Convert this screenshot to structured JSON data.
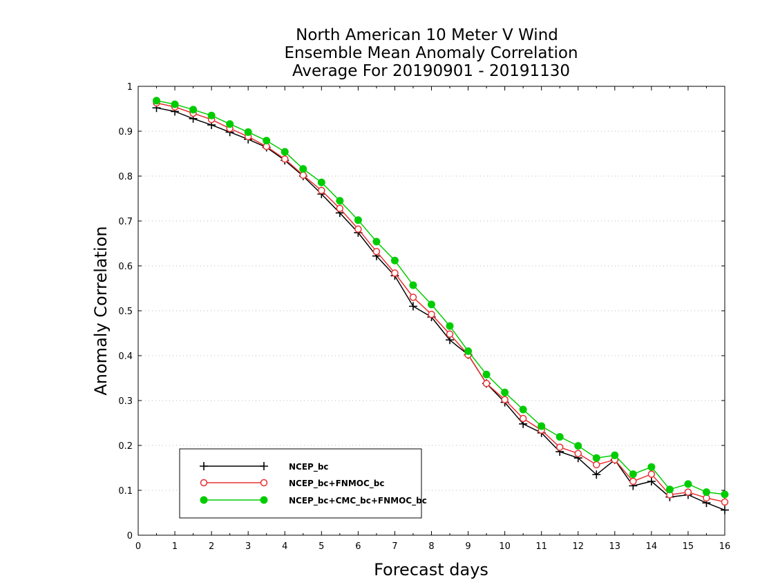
{
  "chart_data": {
    "type": "line",
    "title": [
      "North American 10 Meter V Wind",
      "Ensemble Mean Anomaly Correlation",
      "Average For 20190901 - 20191130"
    ],
    "xlabel": "Forecast days",
    "ylabel": "Anomaly Correlation",
    "xlim": [
      0,
      16
    ],
    "ylim": [
      0,
      1
    ],
    "xticks": [
      "0",
      "1",
      "2",
      "3",
      "4",
      "5",
      "6",
      "7",
      "8",
      "9",
      "10",
      "11",
      "12",
      "13",
      "14",
      "15",
      "16"
    ],
    "yticks": [
      "0",
      "0.1",
      "0.2",
      "0.3",
      "0.4",
      "0.5",
      "0.6",
      "0.7",
      "0.8",
      "0.9",
      "1"
    ],
    "grid": "horizontal dotted",
    "legend_position": "bottom-left",
    "x": [
      0.5,
      1,
      1.5,
      2,
      2.5,
      3,
      3.5,
      4,
      4.5,
      5,
      5.5,
      6,
      6.5,
      7,
      7.5,
      8,
      8.5,
      9,
      9.5,
      10,
      10.5,
      11,
      11.5,
      12,
      12.5,
      13,
      13.5,
      14,
      14.5,
      15,
      15.5,
      16
    ],
    "series": [
      {
        "name": "NCEP_bc",
        "color": "#000000",
        "marker": "plus",
        "values": [
          0.952,
          0.944,
          0.928,
          0.914,
          0.898,
          0.882,
          0.864,
          0.835,
          0.8,
          0.76,
          0.718,
          0.674,
          0.622,
          0.578,
          0.51,
          0.486,
          0.435,
          0.402,
          0.338,
          0.296,
          0.248,
          0.228,
          0.186,
          0.172,
          0.135,
          0.168,
          0.11,
          0.12,
          0.085,
          0.09,
          0.072,
          0.056
        ]
      },
      {
        "name": "NCEP_bc+FNMOC_bc",
        "color": "#e83030",
        "marker": "open-circle",
        "values": [
          0.963,
          0.954,
          0.94,
          0.926,
          0.906,
          0.888,
          0.866,
          0.838,
          0.802,
          0.768,
          0.728,
          0.682,
          0.632,
          0.584,
          0.53,
          0.492,
          0.448,
          0.402,
          0.338,
          0.302,
          0.26,
          0.234,
          0.196,
          0.182,
          0.157,
          0.168,
          0.12,
          0.136,
          0.09,
          0.096,
          0.083,
          0.074
        ]
      },
      {
        "name": "NCEP_bc+CMC_bc+FNMOC_bc",
        "color": "#00cc00",
        "marker": "filled-circle",
        "values": [
          0.968,
          0.96,
          0.948,
          0.935,
          0.916,
          0.898,
          0.879,
          0.854,
          0.816,
          0.786,
          0.745,
          0.702,
          0.654,
          0.612,
          0.557,
          0.514,
          0.466,
          0.41,
          0.358,
          0.318,
          0.28,
          0.243,
          0.219,
          0.199,
          0.172,
          0.178,
          0.136,
          0.152,
          0.102,
          0.114,
          0.096,
          0.091
        ]
      }
    ]
  }
}
